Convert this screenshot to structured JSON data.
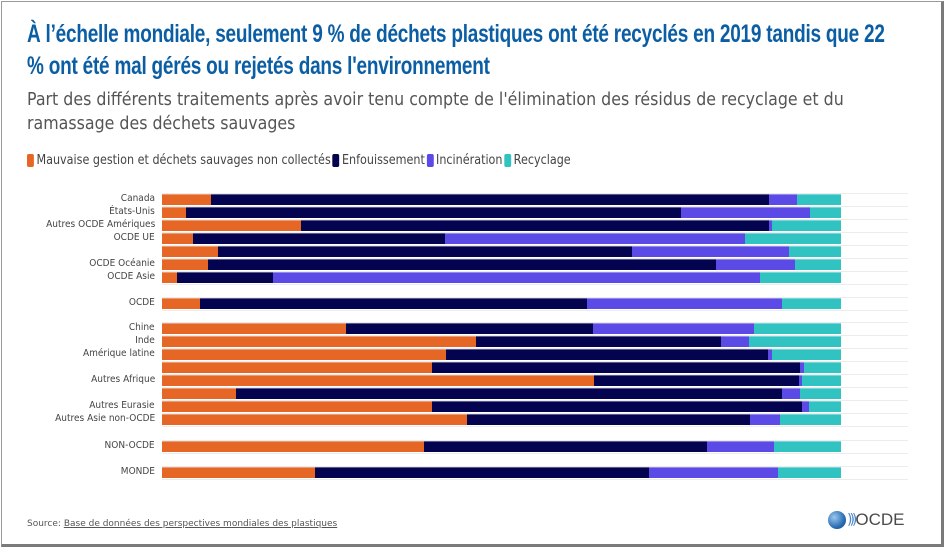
{
  "chart_data": {
    "type": "bar",
    "orientation": "horizontal",
    "stacked": true,
    "normalized": true,
    "title": "À l’échelle mondiale, seulement 9 % de déchets plastiques ont été recyclés en 2019 tandis que 22 % ont été mal gérés ou rejetés dans l'environnement",
    "subtitle": "Part des différents traitements après avoir tenu compte de l'élimination des résidus de recyclage et du ramassage des déchets sauvages",
    "xlabel": "",
    "ylabel": "",
    "xlim": [
      0,
      100
    ],
    "unit": "%",
    "legend_position": "top-left",
    "categories": [
      "Canada",
      "États-Unis",
      "Autres OCDE Amériques",
      "OCDE UE",
      "",
      "OCDE Océanie",
      "OCDE Asie",
      "OCDE",
      "Chine",
      "Inde",
      "Amérique latine",
      "",
      "Autres Afrique",
      "",
      "Autres Eurasie",
      "Autres Asie non-OCDE",
      "NON-OCDE",
      "MONDE"
    ],
    "series": [
      {
        "name": "Mauvaise gestion et déchets sauvages non collectés",
        "color": "#e66626",
        "values": [
          7.2,
          3.5,
          20.5,
          4.6,
          8.2,
          6.8,
          2.2,
          5.6,
          27.1,
          46.2,
          41.8,
          39.8,
          63.6,
          10.9,
          39.8,
          44.9,
          38.6,
          22.5
        ]
      },
      {
        "name": "Enfouissement",
        "color": "#03034f",
        "values": [
          82.2,
          72.9,
          68.9,
          37.1,
          61.0,
          74.8,
          14.1,
          57.0,
          36.4,
          36.2,
          47.4,
          54.2,
          30.2,
          80.4,
          54.5,
          41.7,
          41.7,
          49.2
        ]
      },
      {
        "name": "Incinération",
        "color": "#5b4ae6",
        "values": [
          4.1,
          19.1,
          0.4,
          44.2,
          23.1,
          11.6,
          71.7,
          28.7,
          23.7,
          4.1,
          0.6,
          0.6,
          0.4,
          2.7,
          1.0,
          4.4,
          9.9,
          19.0
        ]
      },
      {
        "name": "Recyclage",
        "color": "#31c3c2",
        "values": [
          6.5,
          4.5,
          10.2,
          14.1,
          7.7,
          6.8,
          12.0,
          8.7,
          12.8,
          13.5,
          10.2,
          5.4,
          5.8,
          6.0,
          4.7,
          9.0,
          9.8,
          9.3
        ]
      }
    ]
  },
  "footer": {
    "source_label": "Source:",
    "source_link": "Base de données des perspectives mondiales des plastiques",
    "logo_text": "OCDE"
  }
}
